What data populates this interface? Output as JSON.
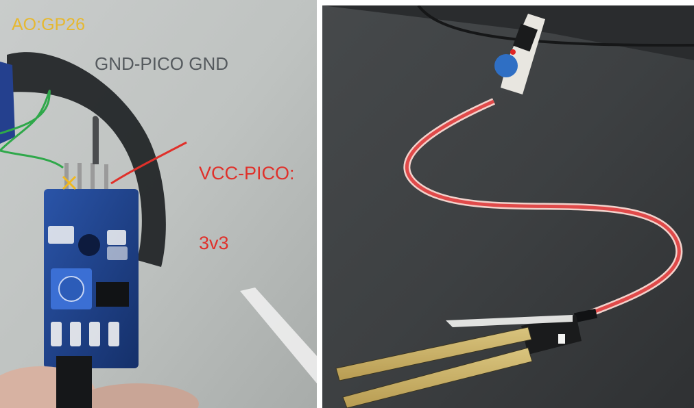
{
  "annotations": {
    "ao_label": "AO:GP26",
    "gnd_label": "GND-PICO GND",
    "vcc_label_line1": "VCC-PICO:",
    "vcc_label_line2": "3v3"
  },
  "colors": {
    "ao_label": "#e6b830",
    "gnd_label": "#555a5e",
    "vcc_label": "#e0302a",
    "pcb_blue": "#1d3f86",
    "wire_red": "#e04a4a",
    "wire_green": "#2fa84a",
    "background": "#ffffff"
  },
  "icons": {
    "left_photo": "soil-moisture-sensor-module-photo",
    "right_photo": "soil-moisture-probe-photo"
  }
}
